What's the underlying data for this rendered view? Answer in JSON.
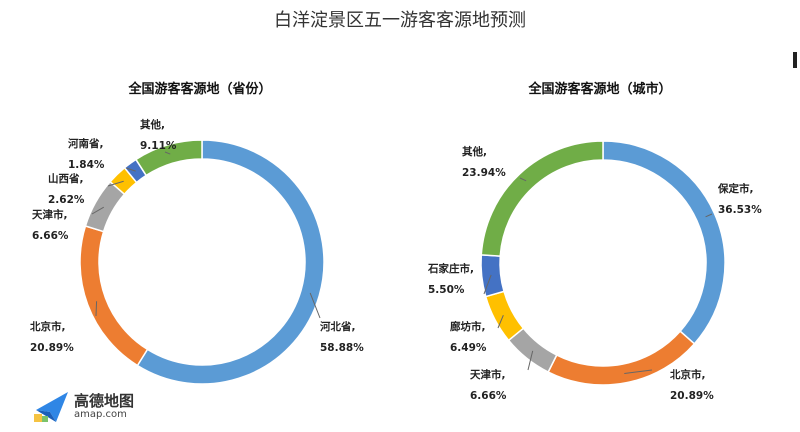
{
  "title": "白洋淀景区五一游客客源地预测",
  "logo": {
    "name": "高德地图",
    "url_text": "amap.com"
  },
  "chart_data": [
    {
      "type": "pie",
      "donut": true,
      "title": "全国游客客源地（省份）",
      "slices": [
        {
          "label": "河北省,",
          "value": 58.88,
          "value_text": "58.88%",
          "color": "#5b9bd5"
        },
        {
          "label": "北京市,",
          "value": 20.89,
          "value_text": "20.89%",
          "color": "#ed7d31"
        },
        {
          "label": "天津市,",
          "value": 6.66,
          "value_text": "6.66%",
          "color": "#a5a5a5"
        },
        {
          "label": "山西省,",
          "value": 2.62,
          "value_text": "2.62%",
          "color": "#ffc000"
        },
        {
          "label": "河南省,",
          "value": 1.84,
          "value_text": "1.84%",
          "color": "#4472c4"
        },
        {
          "label": "其他,",
          "value": 9.11,
          "value_text": "9.11%",
          "color": "#70ad47"
        }
      ]
    },
    {
      "type": "pie",
      "donut": true,
      "title": "全国游客客源地（城市）",
      "slices": [
        {
          "label": "保定市,",
          "value": 36.53,
          "value_text": "36.53%",
          "color": "#5b9bd5"
        },
        {
          "label": "北京市,",
          "value": 20.89,
          "value_text": "20.89%",
          "color": "#ed7d31"
        },
        {
          "label": "天津市,",
          "value": 6.66,
          "value_text": "6.66%",
          "color": "#a5a5a5"
        },
        {
          "label": "廊坊市,",
          "value": 6.49,
          "value_text": "6.49%",
          "color": "#ffc000"
        },
        {
          "label": "石家庄市,",
          "value": 5.5,
          "value_text": "5.50%",
          "color": "#4472c4"
        },
        {
          "label": "其他,",
          "value": 23.94,
          "value_text": "23.94%",
          "color": "#70ad47"
        }
      ]
    }
  ]
}
